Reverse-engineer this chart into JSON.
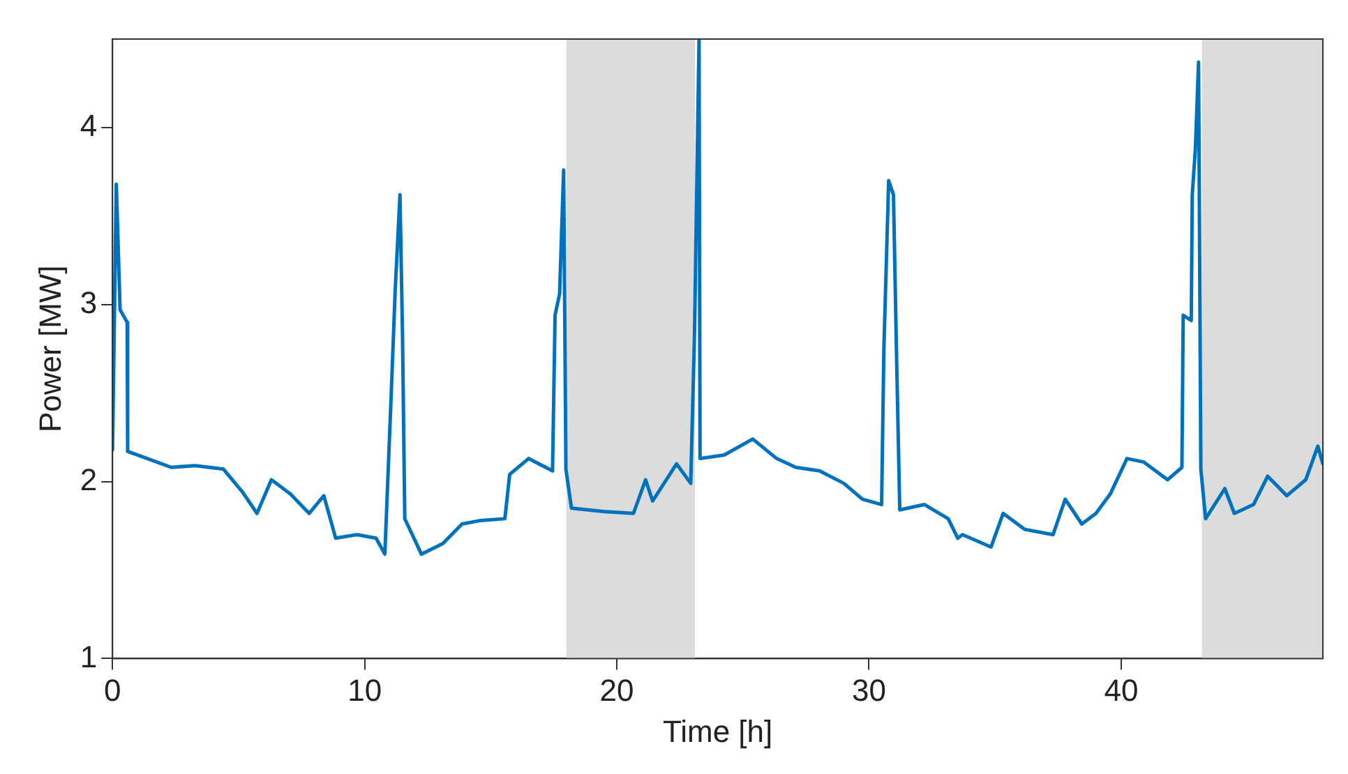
{
  "chart_data": {
    "type": "line",
    "xlabel": "Time [h]",
    "ylabel": "Power [MW]",
    "xlim": [
      0,
      48
    ],
    "xticks": [
      0,
      10,
      20,
      30,
      40
    ],
    "ylim": [
      1,
      4.5
    ],
    "yticks": [
      1,
      2,
      3,
      4
    ],
    "grid": false,
    "legend": false,
    "marker": "none",
    "line_style": "solid",
    "bands": [
      {
        "axis": "x",
        "from": 18,
        "to": 23.1,
        "color": "#dcdcdc"
      },
      {
        "axis": "x",
        "from": 43.2,
        "to": 48,
        "color": "#dcdcdc"
      }
    ],
    "series": [
      {
        "color": "#0072bd",
        "x": [
          0,
          0.15,
          0.3,
          0.58,
          0.6,
          1.38,
          2.33,
          3.27,
          4.4,
          5.16,
          5.73,
          6.3,
          7.05,
          7.8,
          8.38,
          8.85,
          9.7,
          10.45,
          10.8,
          11.06,
          11.21,
          11.4,
          11.5,
          11.59,
          12.25,
          13.1,
          13.86,
          14.6,
          15.56,
          15.75,
          16.5,
          17.45,
          17.55,
          17.73,
          17.89,
          17.98,
          18.2,
          19.53,
          20.66,
          21.14,
          21.42,
          22.37,
          22.93,
          23.08,
          23.26,
          23.3,
          24.26,
          25.39,
          26.34,
          27.1,
          28.04,
          29,
          29.74,
          30.5,
          30.59,
          30.78,
          30.97,
          31.1,
          31.22,
          32.2,
          33.14,
          33.52,
          33.71,
          34.84,
          35.32,
          36.17,
          37.3,
          37.78,
          38.44,
          39,
          39.57,
          40.23,
          40.9,
          41.84,
          42.41,
          42.46,
          42.78,
          42.82,
          42.94,
          43.07,
          43.16,
          43.35,
          44.11,
          44.49,
          45.25,
          45.81,
          46.57,
          47.32,
          47.8,
          48
        ],
        "values": [
          2.18,
          3.68,
          2.97,
          2.9,
          2.17,
          2.13,
          2.08,
          2.09,
          2.07,
          1.94,
          1.82,
          2.01,
          1.93,
          1.82,
          1.92,
          1.68,
          1.7,
          1.68,
          1.59,
          2.52,
          3.08,
          3.62,
          2.83,
          1.79,
          1.59,
          1.65,
          1.76,
          1.78,
          1.79,
          2.04,
          2.13,
          2.06,
          2.94,
          3.06,
          3.76,
          2.07,
          1.85,
          1.83,
          1.82,
          2.01,
          1.89,
          2.1,
          1.99,
          2.83,
          4.5,
          2.13,
          2.15,
          2.24,
          2.13,
          2.08,
          2.06,
          1.99,
          1.9,
          1.87,
          2.75,
          3.7,
          3.62,
          2.66,
          1.84,
          1.87,
          1.79,
          1.68,
          1.7,
          1.63,
          1.82,
          1.73,
          1.7,
          1.9,
          1.76,
          1.82,
          1.93,
          2.13,
          2.11,
          2.01,
          2.08,
          2.94,
          2.91,
          3.62,
          3.87,
          4.37,
          2.07,
          1.79,
          1.96,
          1.82,
          1.87,
          2.03,
          1.92,
          2.01,
          2.2,
          2.1
        ]
      }
    ]
  }
}
